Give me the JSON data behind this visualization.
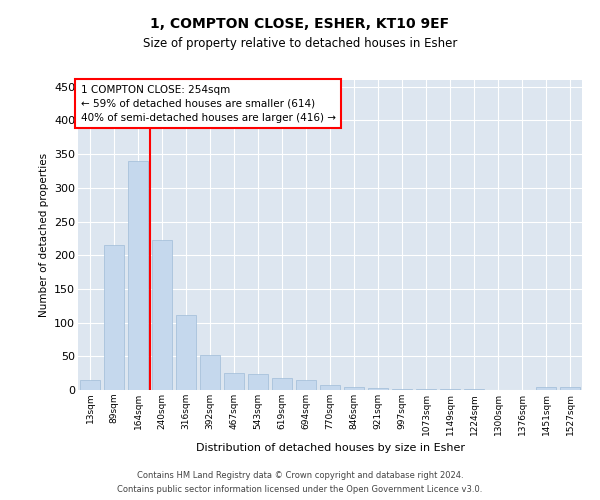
{
  "title": "1, COMPTON CLOSE, ESHER, KT10 9EF",
  "subtitle": "Size of property relative to detached houses in Esher",
  "xlabel": "Distribution of detached houses by size in Esher",
  "ylabel": "Number of detached properties",
  "bar_color": "#c5d8ed",
  "bar_edge_color": "#a0bcd8",
  "bg_color": "#dde6f0",
  "grid_color": "#ffffff",
  "fig_bg": "#ffffff",
  "categories": [
    "13sqm",
    "89sqm",
    "164sqm",
    "240sqm",
    "316sqm",
    "392sqm",
    "467sqm",
    "543sqm",
    "619sqm",
    "694sqm",
    "770sqm",
    "846sqm",
    "921sqm",
    "997sqm",
    "1073sqm",
    "1149sqm",
    "1224sqm",
    "1300sqm",
    "1376sqm",
    "1451sqm",
    "1527sqm"
  ],
  "values": [
    15,
    215,
    340,
    222,
    112,
    52,
    25,
    24,
    18,
    15,
    8,
    5,
    3,
    2,
    1,
    1,
    1,
    0,
    0,
    4,
    4
  ],
  "red_line_x": 2.5,
  "annotation_text": "1 COMPTON CLOSE: 254sqm\n← 59% of detached houses are smaller (614)\n40% of semi-detached houses are larger (416) →",
  "footer1": "Contains HM Land Registry data © Crown copyright and database right 2024.",
  "footer2": "Contains public sector information licensed under the Open Government Licence v3.0.",
  "ylim": [
    0,
    460
  ],
  "yticks": [
    0,
    50,
    100,
    150,
    200,
    250,
    300,
    350,
    400,
    450
  ]
}
